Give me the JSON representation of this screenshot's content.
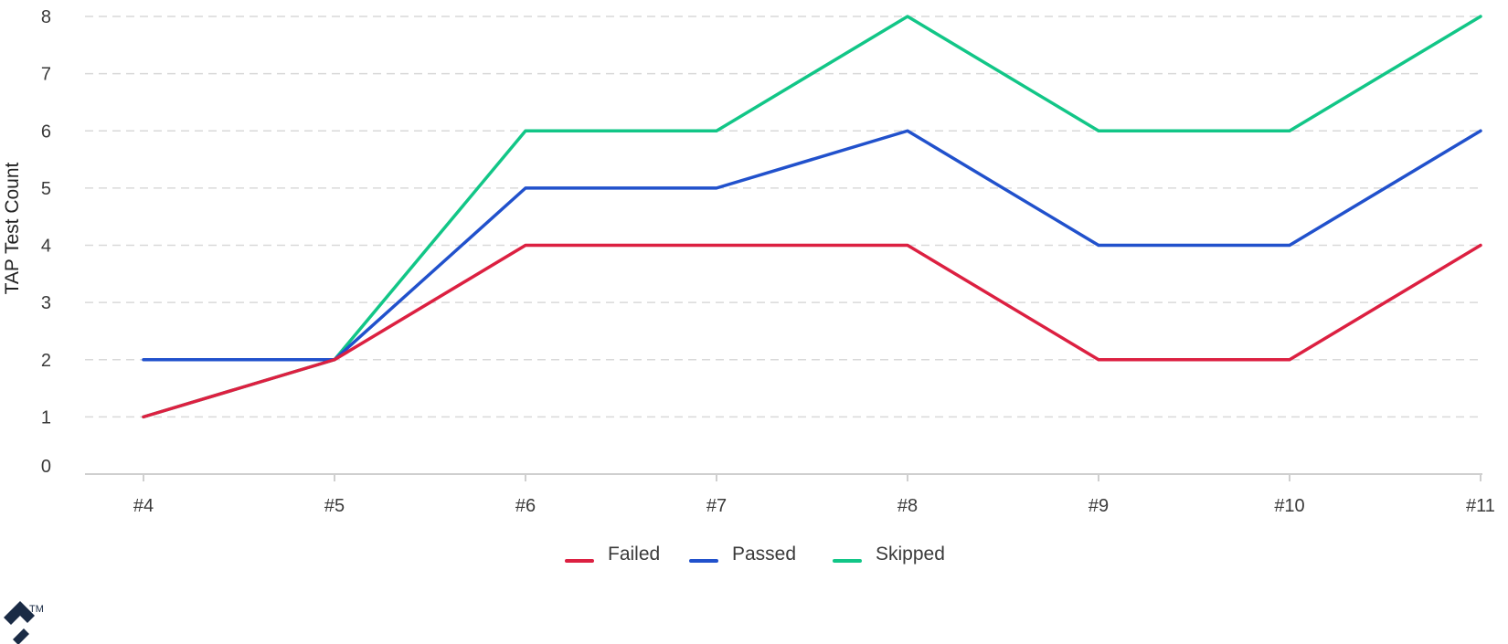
{
  "chart_data": {
    "type": "line",
    "title": "",
    "xlabel": "",
    "ylabel": "TAP Test Count",
    "categories": [
      "#4",
      "#5",
      "#6",
      "#7",
      "#8",
      "#9",
      "#10",
      "#11"
    ],
    "yticks": [
      0,
      1,
      2,
      3,
      4,
      5,
      6,
      7,
      8
    ],
    "ylim": [
      0,
      8
    ],
    "grid": true,
    "legend_position": "bottom-center",
    "series": [
      {
        "name": "Failed",
        "color": "#dc2041",
        "values": [
          1,
          2,
          4,
          4,
          4,
          2,
          2,
          4
        ]
      },
      {
        "name": "Passed",
        "color": "#2151cc",
        "values": [
          2,
          2,
          5,
          5,
          6,
          4,
          4,
          6
        ]
      },
      {
        "name": "Skipped",
        "color": "#12c687",
        "values": [
          1,
          2,
          6,
          6,
          8,
          6,
          6,
          8
        ]
      }
    ]
  },
  "logo": {
    "name": "toptal-logo-icon",
    "trademark": "TM",
    "color": "#1a2b45"
  }
}
